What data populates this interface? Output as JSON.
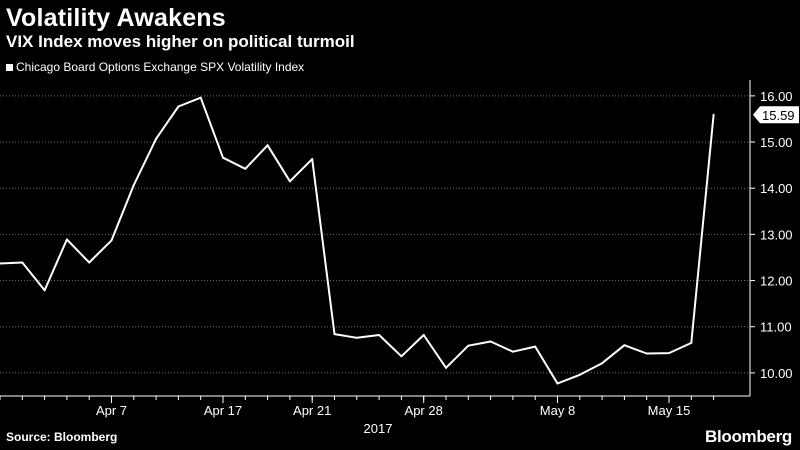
{
  "header": {
    "title": "Volatility Awakens",
    "subtitle": "VIX Index moves higher on political turmoil"
  },
  "footer": {
    "source": "Source: Bloomberg",
    "brand": "Bloomberg"
  },
  "colors": {
    "background": "#000000",
    "line": "#ffffff",
    "grid": "#6e6e6e",
    "text": "#ffffff"
  },
  "chart_data": {
    "type": "line",
    "title": "Volatility Awakens",
    "subtitle": "VIX Index moves higher on political turmoil",
    "xlabel": "2017",
    "ylabel": "",
    "ylim": [
      9.5,
      16.3
    ],
    "y_ticks": [
      "10.00",
      "11.00",
      "12.00",
      "13.00",
      "14.00",
      "15.00",
      "16.00"
    ],
    "x_tick_labels": [
      "Apr 7",
      "Apr 17",
      "Apr 21",
      "Apr 28",
      "May 8",
      "May 15"
    ],
    "x_tick_positions": [
      5,
      10,
      14,
      19,
      25,
      30
    ],
    "legend_position": "top-left",
    "grid": "horizontal dotted",
    "last_value_label": "15.59",
    "series": [
      {
        "name": "Chicago Board Options Exchange SPX Volatility Index",
        "x": [
          0,
          1,
          2,
          3,
          4,
          5,
          6,
          7,
          8,
          9,
          10,
          11,
          12,
          13,
          14,
          15,
          16,
          17,
          18,
          19,
          20,
          21,
          22,
          23,
          24,
          25,
          26,
          27,
          28,
          29,
          30,
          31,
          32
        ],
        "values": [
          12.37,
          12.39,
          11.79,
          12.89,
          12.39,
          12.87,
          14.07,
          15.07,
          15.77,
          15.96,
          14.66,
          14.42,
          14.93,
          14.15,
          14.63,
          10.84,
          10.76,
          10.82,
          10.36,
          10.82,
          10.11,
          10.59,
          10.68,
          10.46,
          10.57,
          9.77,
          9.96,
          10.21,
          10.6,
          10.42,
          10.43,
          10.65,
          15.59
        ]
      }
    ]
  }
}
